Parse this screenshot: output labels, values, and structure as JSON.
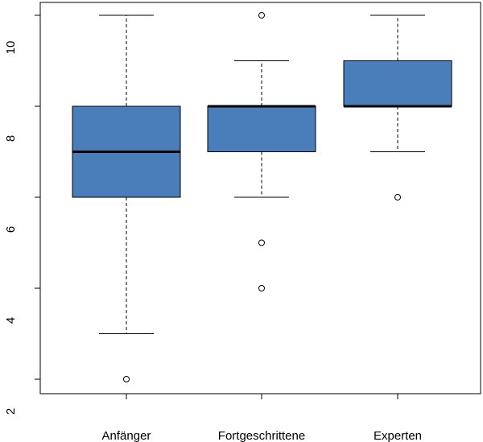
{
  "chart_data": {
    "type": "boxplot",
    "title": "",
    "xlabel": "",
    "ylabel": "",
    "ylim": [
      2,
      10
    ],
    "y_ticks": [
      "2",
      "4",
      "6",
      "8",
      "10"
    ],
    "grid": false,
    "box_color": "#4a7ebb",
    "categories": [
      "Anfänger",
      "Fortgeschrittene",
      "Experten"
    ],
    "boxes": [
      {
        "category": "Anfänger",
        "whisker_low": 3,
        "q1": 6,
        "median": 7,
        "q3": 8,
        "whisker_high": 10,
        "outliers": [
          2
        ]
      },
      {
        "category": "Fortgeschrittene",
        "whisker_low": 6,
        "q1": 7,
        "median": 8,
        "q3": 8,
        "whisker_high": 9,
        "outliers": [
          4,
          5,
          10
        ]
      },
      {
        "category": "Experten",
        "whisker_low": 7,
        "q1": 8,
        "median": 8,
        "q3": 9,
        "whisker_high": 10,
        "outliers": [
          6
        ]
      }
    ]
  }
}
